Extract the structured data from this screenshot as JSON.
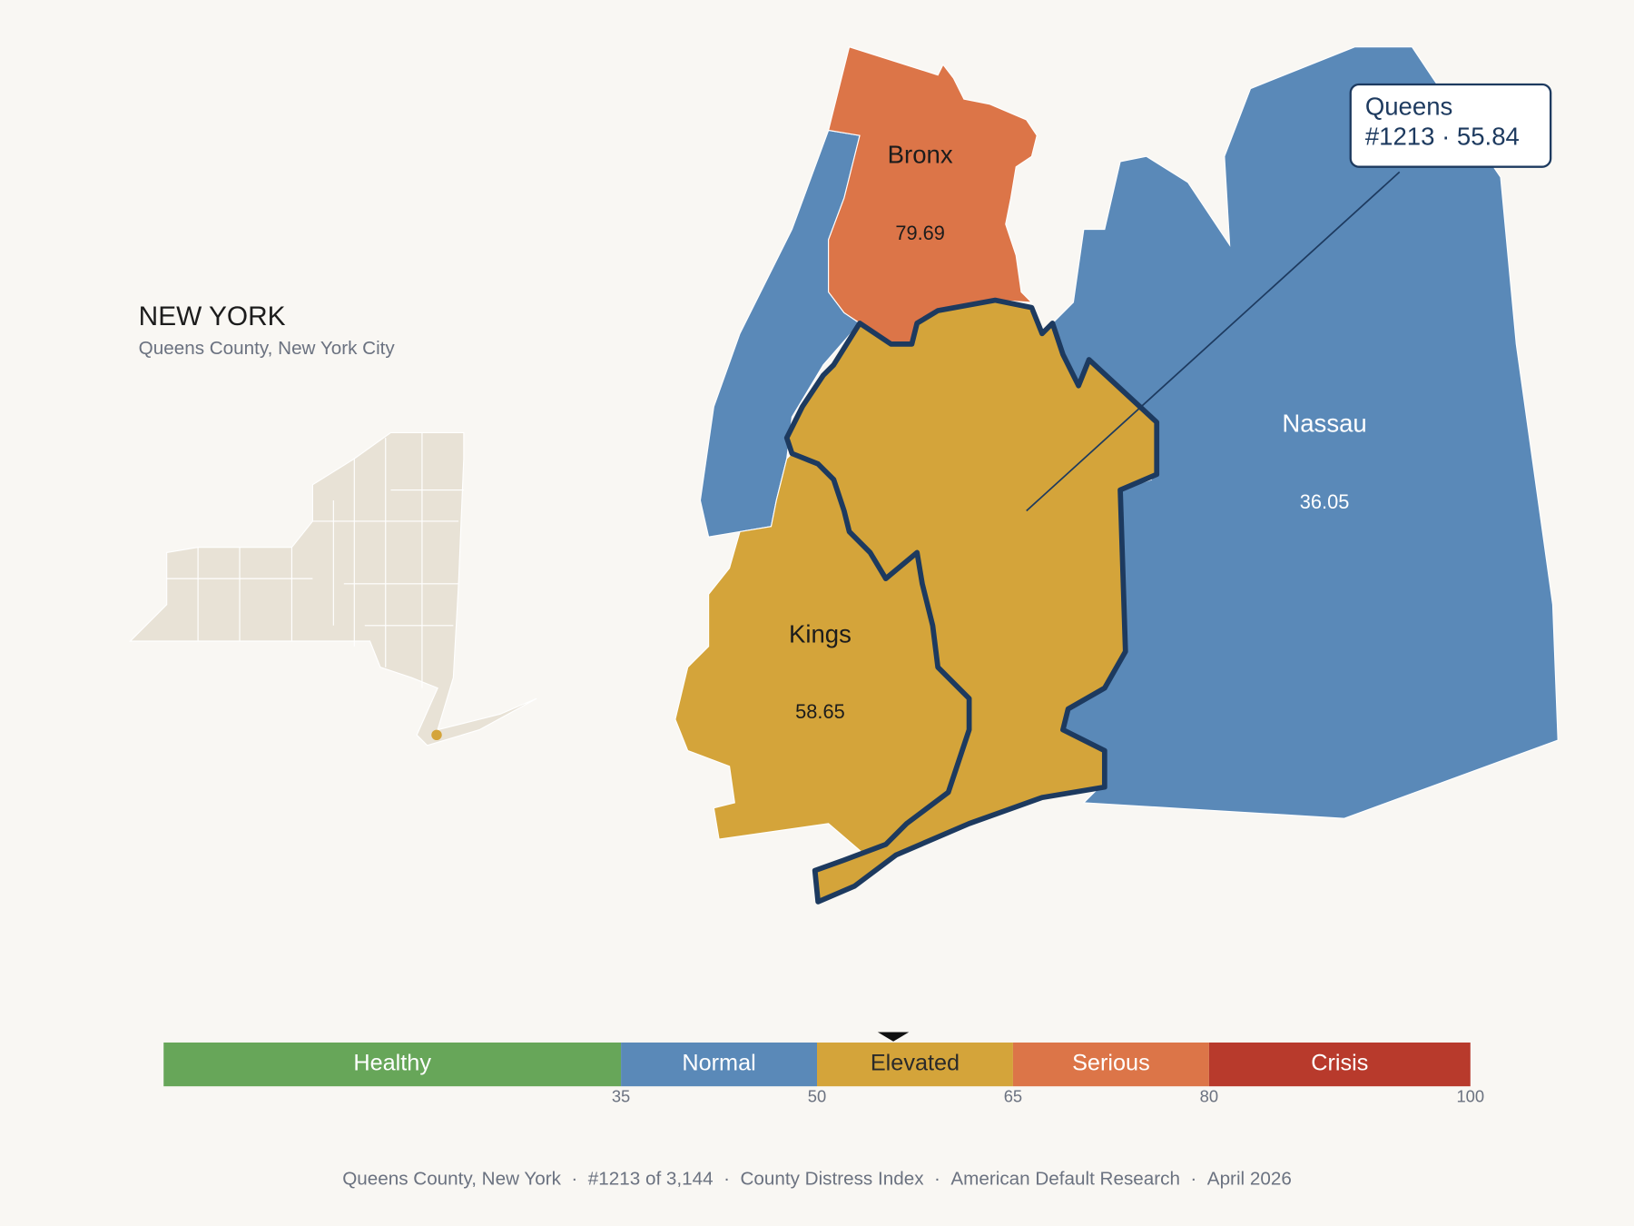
{
  "header": {
    "title": "NEW YORK",
    "subtitle": "Queens County, New York City"
  },
  "counties": [
    {
      "name": "Bronx",
      "value": 79.69
    },
    {
      "name": "Kings",
      "value": 58.65
    },
    {
      "name": "Nassau",
      "value": 36.05
    }
  ],
  "callout": {
    "name": "Queens",
    "rank": "#1213",
    "value": 55.84,
    "separator": " · "
  },
  "scale": {
    "range": [
      0,
      100
    ],
    "bands": [
      {
        "label": "Healthy",
        "color": "#67a659",
        "text_color": "#ffffff"
      },
      {
        "label": "Normal",
        "color": "#5a89b8",
        "text_color": "#ffffff"
      },
      {
        "label": "Elevated",
        "color": "#d4a43a",
        "text_color": "#2a2a2a"
      },
      {
        "label": "Serious",
        "color": "#dc7548",
        "text_color": "#ffffff"
      },
      {
        "label": "Crisis",
        "color": "#b83a2c",
        "text_color": "#ffffff"
      }
    ],
    "ticks": [
      35,
      50,
      65,
      80,
      100
    ]
  },
  "footer": {
    "items": [
      "Queens County, New York",
      "#1213 of 3,144",
      "County Distress Index",
      "American Default Research",
      "April 2026"
    ],
    "separator": "  ·  "
  }
}
